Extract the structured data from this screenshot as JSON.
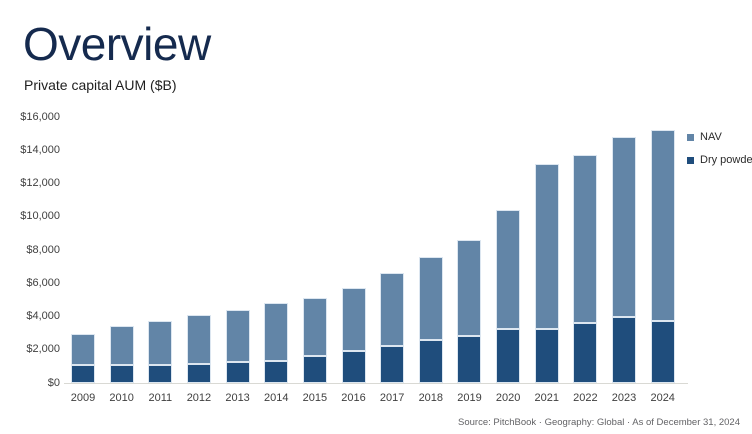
{
  "page": {
    "title": "Overview",
    "subtitle": "Private capital AUM ($B)",
    "source": "Source: PitchBook · Geography: Global · As of December 31, 2024"
  },
  "colors": {
    "title_navy": "#152A4E",
    "nav_blue": "#6285A7",
    "dry_powder_blue": "#1F4D7C",
    "axis_line": "#D9D9D4",
    "axis_text": "#3F3F3F",
    "source_text": "#636366",
    "segment_edge": "#DCE6F0"
  },
  "legend": {
    "items": [
      {
        "label": "NAV",
        "color": "#6285A7"
      },
      {
        "label": "Dry powder",
        "color": "#1F4D7C"
      }
    ]
  },
  "chart_data": {
    "type": "bar",
    "stacked": true,
    "title": "Private capital AUM ($B)",
    "categories": [
      "2009",
      "2010",
      "2011",
      "2012",
      "2013",
      "2014",
      "2015",
      "2016",
      "2017",
      "2018",
      "2019",
      "2020",
      "2021",
      "2022",
      "2023",
      "2024"
    ],
    "series": [
      {
        "name": "Dry powder",
        "color": "#1F4D7C",
        "values": [
          1100,
          1100,
          1100,
          1150,
          1250,
          1350,
          1600,
          1900,
          2250,
          2600,
          2800,
          3250,
          3250,
          3600,
          3950,
          3700
        ]
      },
      {
        "name": "NAV",
        "color": "#6285A7",
        "values": [
          1850,
          2350,
          2600,
          2950,
          3150,
          3450,
          3500,
          3800,
          4350,
          5000,
          5800,
          7150,
          9950,
          10100,
          10850,
          11500
        ]
      }
    ],
    "totals": [
      2950,
      3450,
      3700,
      4100,
      4400,
      4800,
      5100,
      5700,
      6600,
      7600,
      8600,
      10400,
      13200,
      13700,
      14800,
      15200
    ],
    "xlabel": "",
    "ylabel": "",
    "ylim": [
      0,
      16000
    ],
    "ytick_step": 2000,
    "ytick_labels": [
      "$0",
      "$2,000",
      "$4,000",
      "$6,000",
      "$8,000",
      "$10,000",
      "$12,000",
      "$14,000",
      "$16,000"
    ],
    "grid": false,
    "legend_position": "right"
  }
}
